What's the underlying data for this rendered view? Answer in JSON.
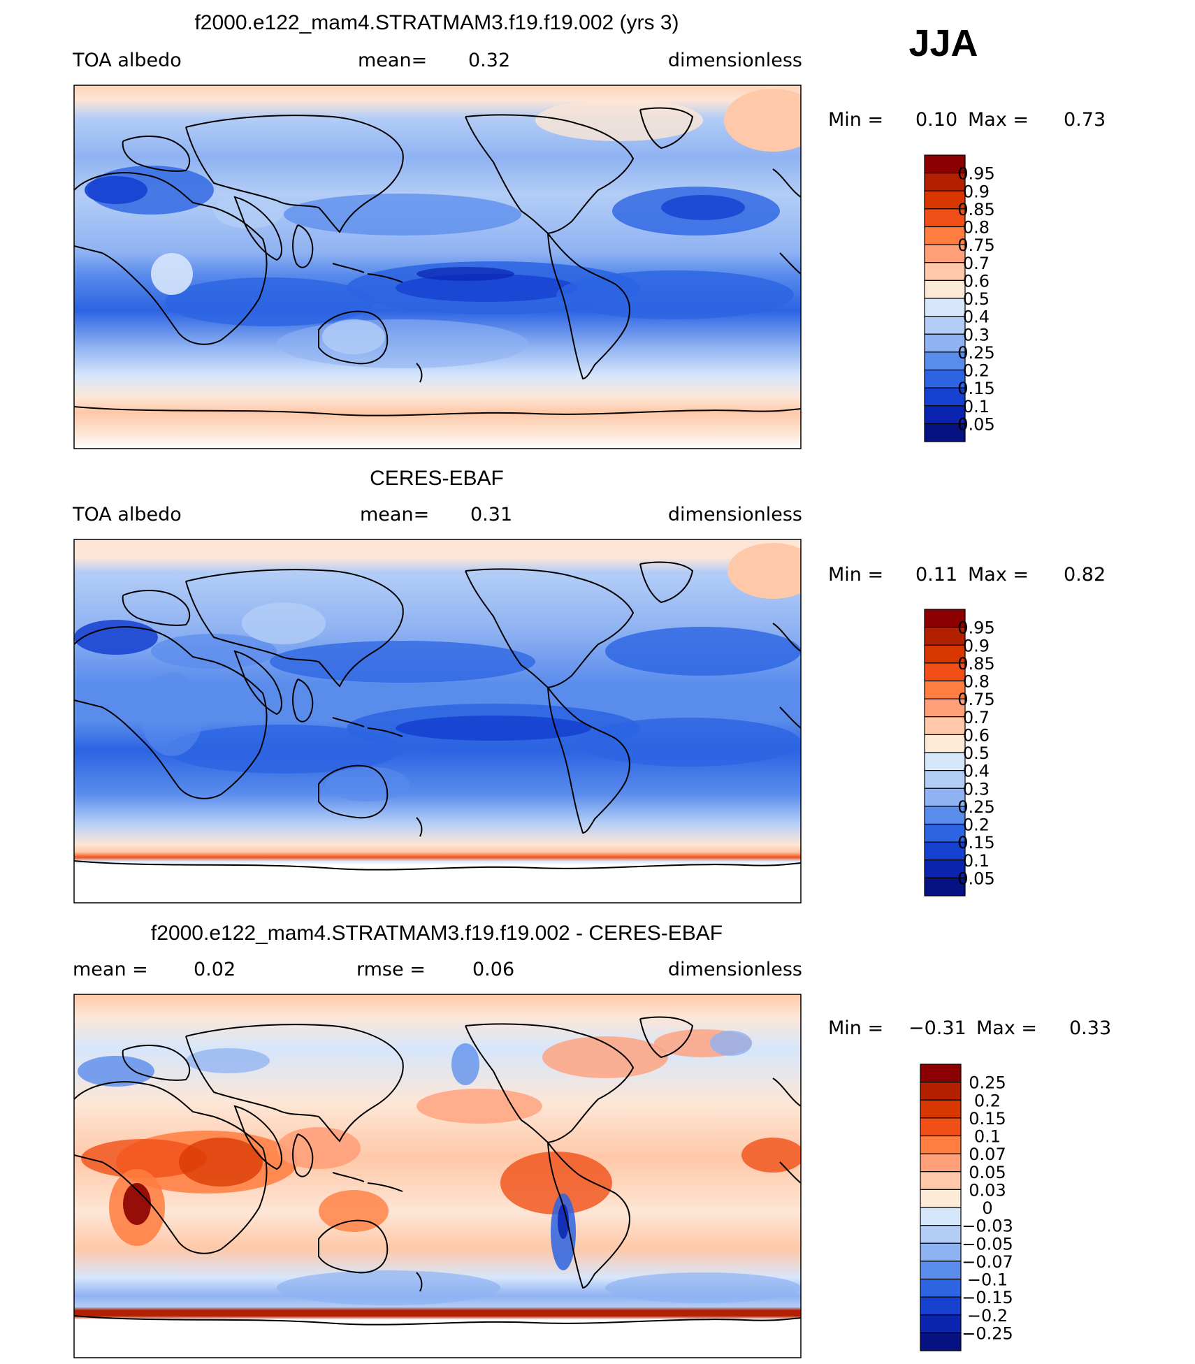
{
  "season": "JJA",
  "panels": [
    {
      "title": "f2000.e122_mam4.STRATMAM3.f19.f19.002 (yrs 3)",
      "left_label": "TOA  albedo",
      "mid_label": "mean=",
      "mid_value": "0.32",
      "right_label": "dimensionless",
      "min_label": "Min  =",
      "min_value": "0.10",
      "max_label": "Max  =",
      "max_value": "0.73",
      "colorbar_key": "albedo"
    },
    {
      "title": "CERES-EBAF",
      "left_label": "TOA  albedo",
      "mid_label": "mean=",
      "mid_value": "0.31",
      "right_label": "dimensionless",
      "min_label": "Min  =",
      "min_value": "0.11",
      "max_label": "Max  =",
      "max_value": "0.82",
      "colorbar_key": "albedo"
    },
    {
      "title": "f2000.e122_mam4.STRATMAM3.f19.f19.002 - CERES-EBAF",
      "left_label": "mean  =",
      "left_value": "0.02",
      "mid_label": "rmse  =",
      "mid_value": "0.06",
      "right_label": "dimensionless",
      "min_label": "Min  =",
      "min_value": "−0.31",
      "max_label": "Max  =",
      "max_value": "0.33",
      "colorbar_key": "difference"
    }
  ],
  "colorbars": {
    "albedo": {
      "labels": [
        "0.95",
        "0.9",
        "0.85",
        "0.8",
        "0.75",
        "0.7",
        "0.6",
        "0.5",
        "0.4",
        "0.3",
        "0.25",
        "0.2",
        "0.15",
        "0.1",
        "0.05"
      ],
      "colors": [
        "#8b0000",
        "#b22000",
        "#d83800",
        "#f05018",
        "#ff7d40",
        "#ffa07a",
        "#ffc8a8",
        "#fdebd8",
        "#d6e6fb",
        "#b3cdf6",
        "#8fb2f2",
        "#5a8cec",
        "#2c64e2",
        "#1540d0",
        "#0a24b0",
        "#061282"
      ]
    },
    "difference": {
      "labels": [
        "0.25",
        "0.2",
        "0.15",
        "0.1",
        "0.07",
        "0.05",
        "0.03",
        "0",
        "−0.03",
        "−0.05",
        "−0.07",
        "−0.1",
        "−0.15",
        "−0.2",
        "−0.25"
      ],
      "colors": [
        "#8b0000",
        "#b22000",
        "#d83800",
        "#f05018",
        "#ff7d40",
        "#ffa07a",
        "#ffc8a8",
        "#fdebd8",
        "#d6e6fb",
        "#b3cdf6",
        "#8fb2f2",
        "#5a8cec",
        "#2c64e2",
        "#1540d0",
        "#0a24b0",
        "#061282"
      ]
    }
  },
  "chart_data": [
    {
      "type": "heatmap",
      "title": "f2000.e122_mam4.STRATMAM3.f19.f19.002 (yrs 3)",
      "variable": "TOA  albedo",
      "units": "dimensionless",
      "mean": 0.32,
      "min": 0.1,
      "max": 0.73,
      "contour_levels": [
        0.05,
        0.1,
        0.15,
        0.2,
        0.25,
        0.3,
        0.4,
        0.5,
        0.6,
        0.7,
        0.75,
        0.8,
        0.85,
        0.9,
        0.95
      ]
    },
    {
      "type": "heatmap",
      "title": "CERES-EBAF",
      "variable": "TOA  albedo",
      "units": "dimensionless",
      "mean": 0.31,
      "min": 0.11,
      "max": 0.82,
      "contour_levels": [
        0.05,
        0.1,
        0.15,
        0.2,
        0.25,
        0.3,
        0.4,
        0.5,
        0.6,
        0.7,
        0.75,
        0.8,
        0.85,
        0.9,
        0.95
      ]
    },
    {
      "type": "heatmap",
      "title": "f2000.e122_mam4.STRATMAM3.f19.f19.002 - CERES-EBAF",
      "units": "dimensionless",
      "mean": 0.02,
      "rmse": 0.06,
      "min": -0.31,
      "max": 0.33,
      "contour_levels": [
        -0.25,
        -0.2,
        -0.15,
        -0.1,
        -0.07,
        -0.05,
        -0.03,
        0,
        0.03,
        0.05,
        0.07,
        0.1,
        0.15,
        0.2,
        0.25
      ]
    }
  ]
}
